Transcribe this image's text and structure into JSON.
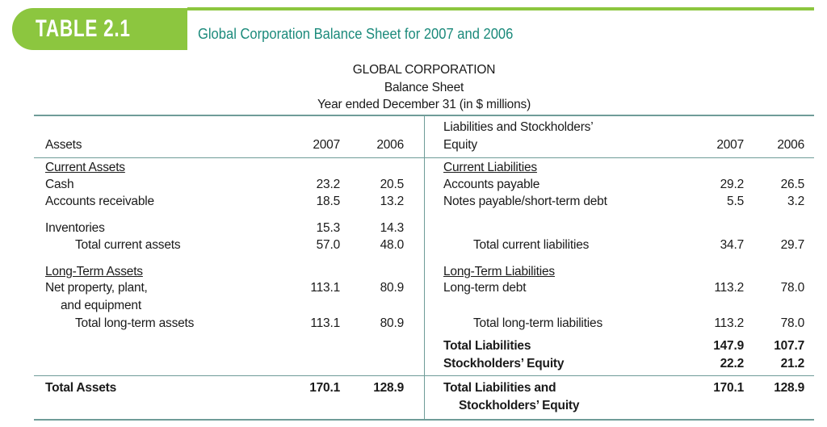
{
  "header": {
    "label": "TABLE 2.1",
    "title": "Global Corporation Balance Sheet for 2007 and 2006"
  },
  "table": {
    "heading": [
      "GLOBAL CORPORATION",
      "Balance Sheet",
      "Year ended December 31 (in $ millions)"
    ],
    "assets_header": {
      "label": "Assets",
      "years": [
        "2007",
        "2006"
      ]
    },
    "liabilities_header": {
      "label": [
        "Liabilities and Stockholders’",
        "Equity"
      ],
      "years": [
        "2007",
        "2006"
      ]
    },
    "assets": [
      {
        "label": "Current Assets"
      },
      {
        "label": "Cash",
        "values": [
          "23.2",
          "20.5"
        ]
      },
      {
        "label": "Accounts receivable",
        "values": [
          "18.5",
          "13.2"
        ]
      },
      {
        "label": "Inventories",
        "values": [
          "15.3",
          "14.3"
        ]
      },
      {
        "label": "Total current assets",
        "values": [
          "57.0",
          "48.0"
        ]
      },
      {
        "label": "Long-Term Assets"
      },
      {
        "label": [
          "Net property, plant,",
          "and equipment"
        ],
        "values": [
          "113.1",
          "80.9"
        ]
      },
      {
        "label": "Total long-term assets",
        "values": [
          "113.1",
          "80.9"
        ]
      },
      {
        "label": "Total Assets",
        "values": [
          "170.1",
          "128.9"
        ]
      }
    ],
    "liabilities": [
      {
        "label": "Current Liabilities"
      },
      {
        "label": "Accounts payable",
        "values": [
          "29.2",
          "26.5"
        ]
      },
      {
        "label": "Notes payable/short-term debt",
        "values": [
          "5.5",
          "3.2"
        ]
      },
      {
        "label": "Total current liabilities",
        "values": [
          "34.7",
          "29.7"
        ]
      },
      {
        "label": "Long-Term Liabilities"
      },
      {
        "label": "Long-term debt",
        "values": [
          "113.2",
          "78.0"
        ]
      },
      {
        "label": "Total long-term liabilities",
        "values": [
          "113.2",
          "78.0"
        ]
      },
      {
        "label": "Total Liabilities",
        "values": [
          "147.9",
          "107.7"
        ]
      },
      {
        "label": "Stockholders’ Equity",
        "values": [
          "22.2",
          "21.2"
        ]
      },
      {
        "label": [
          "Total Liabilities and",
          "Stockholders’ Equity"
        ],
        "values": [
          "170.1",
          "128.9"
        ]
      }
    ]
  }
}
